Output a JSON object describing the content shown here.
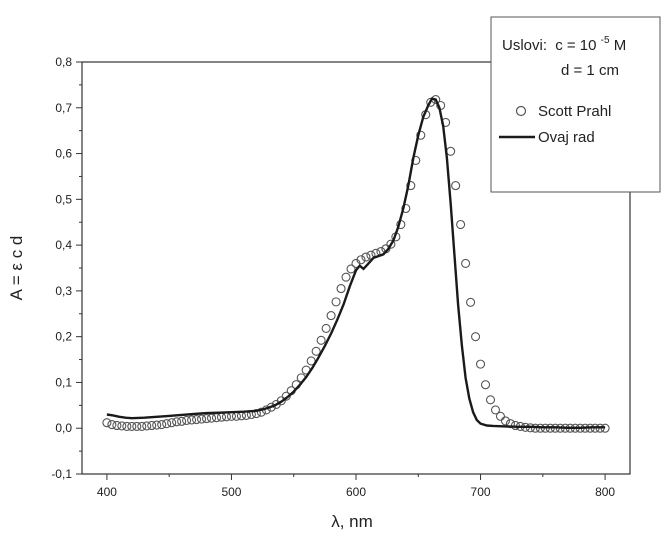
{
  "chart_data": {
    "type": "scatter",
    "xlabel": "λ, nm",
    "ylabel": "A = ε c d",
    "xlim": [
      380,
      820
    ],
    "ylim": [
      -0.1,
      0.8
    ],
    "x_ticks": [
      400,
      500,
      600,
      700,
      800
    ],
    "x_tick_labels": [
      "400",
      "500",
      "600",
      "700",
      "800"
    ],
    "y_ticks": [
      -0.1,
      0.0,
      0.1,
      0.2,
      0.3,
      0.4,
      0.5,
      0.6,
      0.7,
      0.8
    ],
    "y_tick_labels": [
      "-0,1",
      "0,0",
      "0,1",
      "0,2",
      "0,3",
      "0,4",
      "0,5",
      "0,6",
      "0,7",
      "0,8"
    ],
    "grid": false,
    "legend_position": "top-right",
    "conditions_label": "Uslovi:",
    "condition_c_prefix": "c = 10",
    "condition_c_exponent": "-5",
    "condition_c_suffix": " M",
    "condition_d": "d = 1 cm",
    "series": [
      {
        "name": "Scott Prahl",
        "style": "open-circle",
        "color": "#555555",
        "x": [
          400,
          404,
          408,
          412,
          416,
          420,
          424,
          428,
          432,
          436,
          440,
          444,
          448,
          452,
          456,
          460,
          464,
          468,
          472,
          476,
          480,
          484,
          488,
          492,
          496,
          500,
          504,
          508,
          512,
          516,
          520,
          524,
          528,
          532,
          536,
          540,
          544,
          548,
          552,
          556,
          560,
          564,
          568,
          572,
          576,
          580,
          584,
          588,
          592,
          596,
          600,
          604,
          608,
          612,
          616,
          620,
          624,
          628,
          632,
          636,
          640,
          644,
          648,
          652,
          656,
          660,
          664,
          668,
          672,
          676,
          680,
          684,
          688,
          692,
          696,
          700,
          704,
          708,
          712,
          716,
          720,
          724,
          728,
          732,
          736,
          740,
          744,
          748,
          752,
          756,
          760,
          764,
          768,
          772,
          776,
          780,
          784,
          788,
          792,
          796,
          800
        ],
        "y": [
          0.012,
          0.008,
          0.006,
          0.005,
          0.004,
          0.004,
          0.004,
          0.004,
          0.005,
          0.006,
          0.007,
          0.008,
          0.01,
          0.012,
          0.014,
          0.015,
          0.017,
          0.018,
          0.019,
          0.02,
          0.021,
          0.022,
          0.023,
          0.024,
          0.025,
          0.026,
          0.026,
          0.027,
          0.028,
          0.03,
          0.032,
          0.035,
          0.04,
          0.046,
          0.052,
          0.06,
          0.07,
          0.082,
          0.095,
          0.11,
          0.127,
          0.147,
          0.168,
          0.192,
          0.218,
          0.246,
          0.276,
          0.305,
          0.33,
          0.348,
          0.36,
          0.368,
          0.374,
          0.378,
          0.382,
          0.386,
          0.392,
          0.402,
          0.418,
          0.445,
          0.48,
          0.53,
          0.585,
          0.64,
          0.685,
          0.712,
          0.718,
          0.705,
          0.668,
          0.605,
          0.53,
          0.445,
          0.36,
          0.275,
          0.2,
          0.14,
          0.095,
          0.062,
          0.04,
          0.026,
          0.016,
          0.01,
          0.006,
          0.004,
          0.002,
          0.001,
          0.0,
          0.0,
          0.0,
          0.0,
          0.0,
          0.0,
          0.0,
          0.0,
          0.0,
          0.0,
          0.0,
          0.0,
          0.0,
          0.0,
          0.0
        ]
      },
      {
        "name": "Ovaj rad",
        "style": "line",
        "color": "#1a1a1a",
        "x": [
          400,
          405,
          410,
          415,
          420,
          430,
          440,
          450,
          460,
          470,
          480,
          490,
          500,
          510,
          520,
          525,
          530,
          535,
          540,
          545,
          550,
          555,
          560,
          565,
          570,
          575,
          580,
          585,
          590,
          595,
          600,
          603,
          606,
          610,
          614,
          618,
          622,
          626,
          630,
          634,
          638,
          642,
          646,
          650,
          654,
          658,
          661,
          664,
          667,
          670,
          673,
          676,
          679,
          682,
          685,
          688,
          691,
          694,
          697,
          700,
          705,
          710,
          720,
          730,
          740,
          750,
          760,
          770,
          780,
          790,
          800
        ],
        "y": [
          0.03,
          0.028,
          0.025,
          0.023,
          0.022,
          0.023,
          0.025,
          0.027,
          0.029,
          0.031,
          0.033,
          0.034,
          0.035,
          0.036,
          0.038,
          0.041,
          0.045,
          0.05,
          0.058,
          0.068,
          0.08,
          0.095,
          0.112,
          0.132,
          0.155,
          0.18,
          0.207,
          0.237,
          0.27,
          0.31,
          0.345,
          0.355,
          0.348,
          0.36,
          0.372,
          0.376,
          0.38,
          0.392,
          0.41,
          0.44,
          0.48,
          0.53,
          0.59,
          0.64,
          0.68,
          0.705,
          0.72,
          0.718,
          0.7,
          0.66,
          0.59,
          0.49,
          0.38,
          0.27,
          0.18,
          0.11,
          0.065,
          0.035,
          0.018,
          0.01,
          0.006,
          0.005,
          0.004,
          0.003,
          0.003,
          0.002,
          0.002,
          0.001,
          0.001,
          0.002,
          0.002
        ]
      }
    ]
  }
}
